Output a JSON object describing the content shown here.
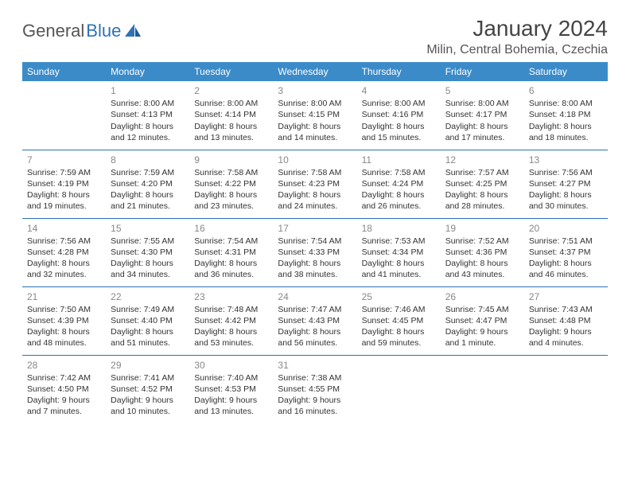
{
  "brand": {
    "part1": "General",
    "part2": "Blue"
  },
  "title": "January 2024",
  "location": "Milin, Central Bohemia, Czechia",
  "colors": {
    "header_bg": "#3b8bc9",
    "header_text": "#ffffff",
    "border": "#2d72b8",
    "daynum": "#888888",
    "body_text": "#333333",
    "brand_gray": "#555555",
    "brand_blue": "#2d72b8",
    "background": "#ffffff"
  },
  "day_headers": [
    "Sunday",
    "Monday",
    "Tuesday",
    "Wednesday",
    "Thursday",
    "Friday",
    "Saturday"
  ],
  "weeks": [
    [
      null,
      {
        "n": "1",
        "sr": "Sunrise: 8:00 AM",
        "ss": "Sunset: 4:13 PM",
        "dl": "Daylight: 8 hours and 12 minutes."
      },
      {
        "n": "2",
        "sr": "Sunrise: 8:00 AM",
        "ss": "Sunset: 4:14 PM",
        "dl": "Daylight: 8 hours and 13 minutes."
      },
      {
        "n": "3",
        "sr": "Sunrise: 8:00 AM",
        "ss": "Sunset: 4:15 PM",
        "dl": "Daylight: 8 hours and 14 minutes."
      },
      {
        "n": "4",
        "sr": "Sunrise: 8:00 AM",
        "ss": "Sunset: 4:16 PM",
        "dl": "Daylight: 8 hours and 15 minutes."
      },
      {
        "n": "5",
        "sr": "Sunrise: 8:00 AM",
        "ss": "Sunset: 4:17 PM",
        "dl": "Daylight: 8 hours and 17 minutes."
      },
      {
        "n": "6",
        "sr": "Sunrise: 8:00 AM",
        "ss": "Sunset: 4:18 PM",
        "dl": "Daylight: 8 hours and 18 minutes."
      }
    ],
    [
      {
        "n": "7",
        "sr": "Sunrise: 7:59 AM",
        "ss": "Sunset: 4:19 PM",
        "dl": "Daylight: 8 hours and 19 minutes."
      },
      {
        "n": "8",
        "sr": "Sunrise: 7:59 AM",
        "ss": "Sunset: 4:20 PM",
        "dl": "Daylight: 8 hours and 21 minutes."
      },
      {
        "n": "9",
        "sr": "Sunrise: 7:58 AM",
        "ss": "Sunset: 4:22 PM",
        "dl": "Daylight: 8 hours and 23 minutes."
      },
      {
        "n": "10",
        "sr": "Sunrise: 7:58 AM",
        "ss": "Sunset: 4:23 PM",
        "dl": "Daylight: 8 hours and 24 minutes."
      },
      {
        "n": "11",
        "sr": "Sunrise: 7:58 AM",
        "ss": "Sunset: 4:24 PM",
        "dl": "Daylight: 8 hours and 26 minutes."
      },
      {
        "n": "12",
        "sr": "Sunrise: 7:57 AM",
        "ss": "Sunset: 4:25 PM",
        "dl": "Daylight: 8 hours and 28 minutes."
      },
      {
        "n": "13",
        "sr": "Sunrise: 7:56 AM",
        "ss": "Sunset: 4:27 PM",
        "dl": "Daylight: 8 hours and 30 minutes."
      }
    ],
    [
      {
        "n": "14",
        "sr": "Sunrise: 7:56 AM",
        "ss": "Sunset: 4:28 PM",
        "dl": "Daylight: 8 hours and 32 minutes."
      },
      {
        "n": "15",
        "sr": "Sunrise: 7:55 AM",
        "ss": "Sunset: 4:30 PM",
        "dl": "Daylight: 8 hours and 34 minutes."
      },
      {
        "n": "16",
        "sr": "Sunrise: 7:54 AM",
        "ss": "Sunset: 4:31 PM",
        "dl": "Daylight: 8 hours and 36 minutes."
      },
      {
        "n": "17",
        "sr": "Sunrise: 7:54 AM",
        "ss": "Sunset: 4:33 PM",
        "dl": "Daylight: 8 hours and 38 minutes."
      },
      {
        "n": "18",
        "sr": "Sunrise: 7:53 AM",
        "ss": "Sunset: 4:34 PM",
        "dl": "Daylight: 8 hours and 41 minutes."
      },
      {
        "n": "19",
        "sr": "Sunrise: 7:52 AM",
        "ss": "Sunset: 4:36 PM",
        "dl": "Daylight: 8 hours and 43 minutes."
      },
      {
        "n": "20",
        "sr": "Sunrise: 7:51 AM",
        "ss": "Sunset: 4:37 PM",
        "dl": "Daylight: 8 hours and 46 minutes."
      }
    ],
    [
      {
        "n": "21",
        "sr": "Sunrise: 7:50 AM",
        "ss": "Sunset: 4:39 PM",
        "dl": "Daylight: 8 hours and 48 minutes."
      },
      {
        "n": "22",
        "sr": "Sunrise: 7:49 AM",
        "ss": "Sunset: 4:40 PM",
        "dl": "Daylight: 8 hours and 51 minutes."
      },
      {
        "n": "23",
        "sr": "Sunrise: 7:48 AM",
        "ss": "Sunset: 4:42 PM",
        "dl": "Daylight: 8 hours and 53 minutes."
      },
      {
        "n": "24",
        "sr": "Sunrise: 7:47 AM",
        "ss": "Sunset: 4:43 PM",
        "dl": "Daylight: 8 hours and 56 minutes."
      },
      {
        "n": "25",
        "sr": "Sunrise: 7:46 AM",
        "ss": "Sunset: 4:45 PM",
        "dl": "Daylight: 8 hours and 59 minutes."
      },
      {
        "n": "26",
        "sr": "Sunrise: 7:45 AM",
        "ss": "Sunset: 4:47 PM",
        "dl": "Daylight: 9 hours and 1 minute."
      },
      {
        "n": "27",
        "sr": "Sunrise: 7:43 AM",
        "ss": "Sunset: 4:48 PM",
        "dl": "Daylight: 9 hours and 4 minutes."
      }
    ],
    [
      {
        "n": "28",
        "sr": "Sunrise: 7:42 AM",
        "ss": "Sunset: 4:50 PM",
        "dl": "Daylight: 9 hours and 7 minutes."
      },
      {
        "n": "29",
        "sr": "Sunrise: 7:41 AM",
        "ss": "Sunset: 4:52 PM",
        "dl": "Daylight: 9 hours and 10 minutes."
      },
      {
        "n": "30",
        "sr": "Sunrise: 7:40 AM",
        "ss": "Sunset: 4:53 PM",
        "dl": "Daylight: 9 hours and 13 minutes."
      },
      {
        "n": "31",
        "sr": "Sunrise: 7:38 AM",
        "ss": "Sunset: 4:55 PM",
        "dl": "Daylight: 9 hours and 16 minutes."
      },
      null,
      null,
      null
    ]
  ]
}
